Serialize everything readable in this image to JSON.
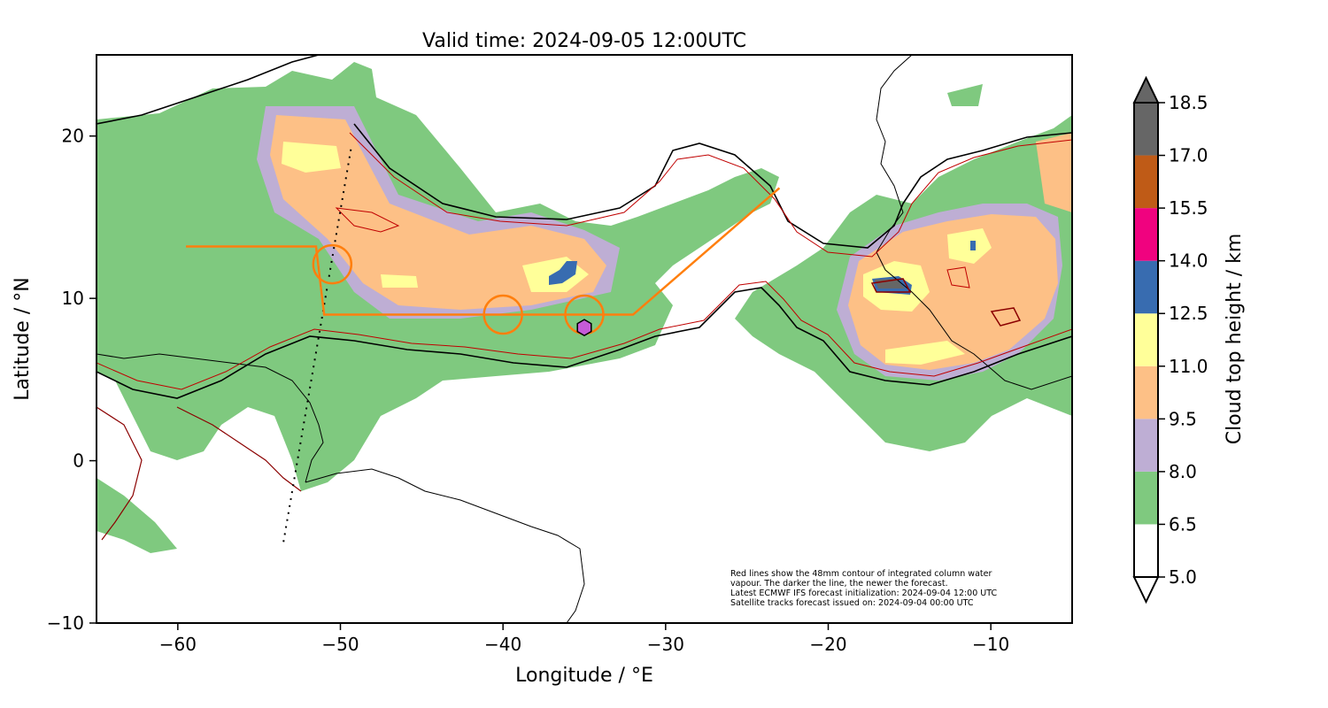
{
  "title": "Valid time: 2024-09-05 12:00UTC",
  "xlabel": "Longitude / °E",
  "ylabel": "Latitude / °N",
  "xticks": [
    -60,
    -50,
    -40,
    -30,
    -20,
    -10
  ],
  "yticks": [
    20,
    10,
    0,
    -10
  ],
  "xtick_labels": [
    "−60",
    "−50",
    "−40",
    "−30",
    "−20",
    "−10"
  ],
  "ytick_labels": [
    "20",
    "10",
    "0",
    "−10"
  ],
  "xlim": [
    -65,
    -5
  ],
  "ylim": [
    -10,
    25
  ],
  "colorbar": {
    "label": "Cloud top height / km",
    "ticks": [
      "18.5",
      "17.0",
      "15.5",
      "14.0",
      "12.5",
      "11.0",
      "9.5",
      "8.0",
      "6.5",
      "5.0"
    ],
    "bins": [
      {
        "range": [
          5.0,
          6.5
        ],
        "color": "#ffffff"
      },
      {
        "range": [
          6.5,
          8.0
        ],
        "color": "#7fc97f"
      },
      {
        "range": [
          8.0,
          9.5
        ],
        "color": "#beaed4"
      },
      {
        "range": [
          9.5,
          11.0
        ],
        "color": "#fdc086"
      },
      {
        "range": [
          11.0,
          12.5
        ],
        "color": "#ffff99"
      },
      {
        "range": [
          12.5,
          14.0
        ],
        "color": "#386cb0"
      },
      {
        "range": [
          14.0,
          15.5
        ],
        "color": "#f0027f"
      },
      {
        "range": [
          15.5,
          17.0
        ],
        "color": "#bf5b17"
      },
      {
        "range": [
          17.0,
          18.5
        ],
        "color": "#666666"
      }
    ]
  },
  "note_lines": [
    "Red lines show the 48mm contour of integrated column water",
    "vapour. The darker the line, the newer the forecast.",
    "Latest ECMWF IFS forecast initialization: 2024-09-04 12:00 UTC",
    "Satellite tracks forecast issued on: 2024-09-04 00:00 UTC"
  ],
  "flight_track": {
    "color": "#ff7f0e",
    "points": [
      [
        -59.5,
        13.2
      ],
      [
        -51.5,
        13.2
      ],
      [
        -51,
        9
      ],
      [
        -32,
        9
      ],
      [
        -23,
        16.8
      ]
    ]
  },
  "circles": [
    [
      -50.5,
      12.1
    ],
    [
      -40,
      9
    ],
    [
      -35,
      9
    ]
  ],
  "circle_radius_deg": 2.3,
  "hexagon_marker": {
    "lon": -35,
    "lat": 8.2,
    "color": "#c55bd8"
  },
  "satellite_track": [
    [
      -53.5,
      -5
    ],
    [
      -49.3,
      19.5
    ]
  ]
}
